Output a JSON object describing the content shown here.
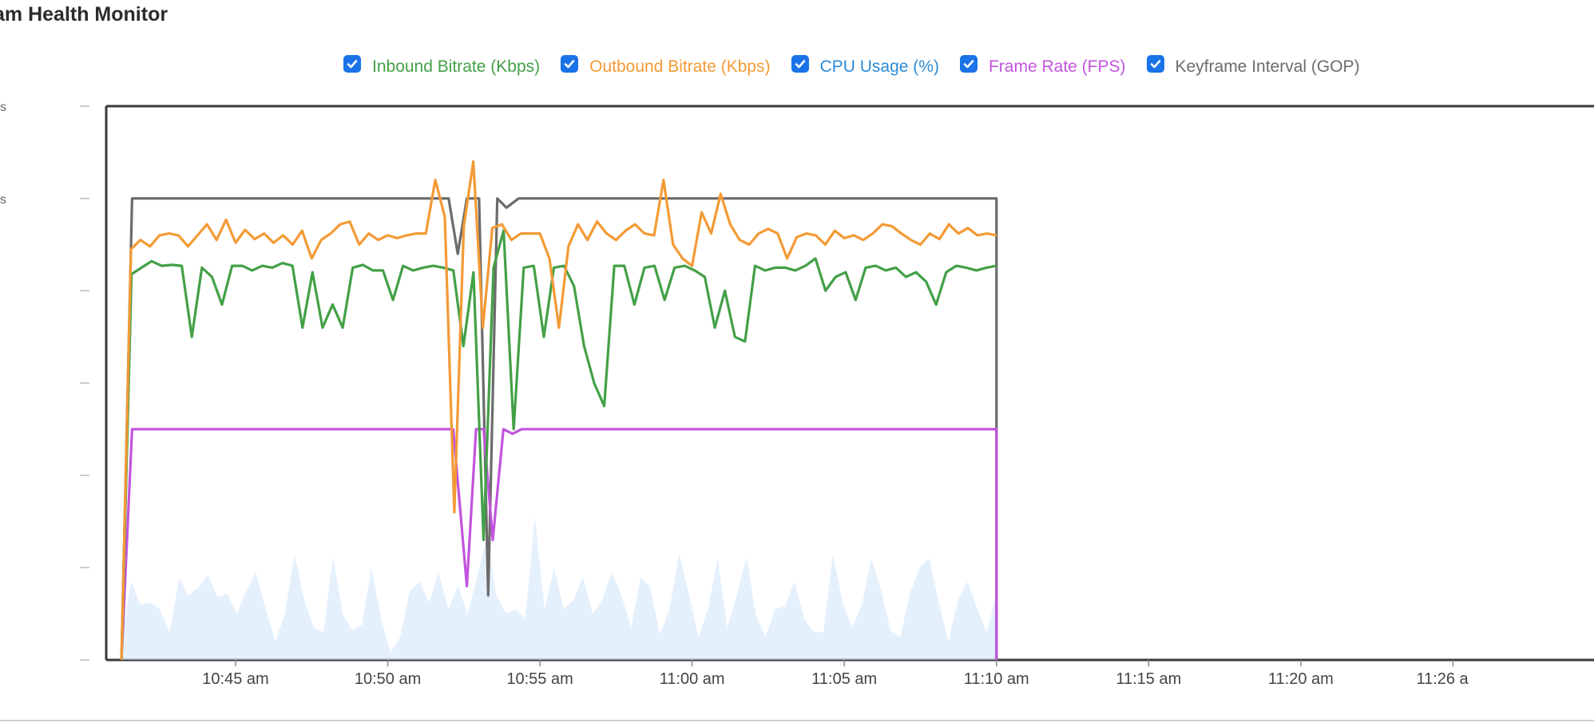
{
  "page": {
    "title": "am Health Monitor"
  },
  "legend": {
    "items": [
      {
        "label": "Inbound Bitrate (Kbps)",
        "color": "#43a047",
        "checked": true
      },
      {
        "label": "Outbound Bitrate (Kbps)",
        "color": "#f39a35",
        "checked": true
      },
      {
        "label": "CPU Usage (%)",
        "color": "#2d8ad6",
        "checked": true
      },
      {
        "label": "Frame Rate (FPS)",
        "color": "#c154dd",
        "checked": true
      },
      {
        "label": "Keyframe Interval (GOP)",
        "color": "#6b6b6b",
        "checked": true
      }
    ]
  },
  "y_axis": {
    "visible_labels": [
      "s",
      "s"
    ]
  },
  "chart_data": {
    "type": "line",
    "x_ticks": [
      "10:45 am",
      "10:50 am",
      "10:55 am",
      "11:00 am",
      "11:05 am",
      "11:10 am",
      "11:15 am",
      "11:20 am",
      "11:26 a"
    ],
    "x_tick_minutes": [
      5,
      10,
      15,
      20,
      25,
      30,
      35,
      40,
      45
    ],
    "x_range": [
      0.75,
      50
    ],
    "y_range": [
      0,
      6
    ],
    "grid": false,
    "legend_placement": "top",
    "series": [
      {
        "name": "Keyframe Interval (GOP)",
        "color": "#6b6b6b",
        "style": "line",
        "points": [
          [
            1.25,
            0
          ],
          [
            1.6,
            5
          ],
          [
            12.0,
            5
          ],
          [
            12.3,
            4.4
          ],
          [
            12.6,
            5
          ],
          [
            13.0,
            5
          ],
          [
            13.3,
            0.7
          ],
          [
            13.6,
            5
          ],
          [
            13.9,
            4.9
          ],
          [
            14.3,
            5
          ],
          [
            30.0,
            5
          ],
          [
            30.0,
            0
          ]
        ]
      },
      {
        "name": "Outbound Bitrate (Kbps)",
        "color": "#f39a35",
        "style": "line",
        "values": [
          0,
          4.45,
          4.55,
          4.48,
          4.6,
          4.62,
          4.6,
          4.48,
          4.6,
          4.72,
          4.55,
          4.77,
          4.52,
          4.66,
          4.56,
          4.62,
          4.52,
          4.6,
          4.5,
          4.65,
          4.35,
          4.55,
          4.62,
          4.72,
          4.75,
          4.5,
          4.62,
          4.55,
          4.6,
          4.57,
          4.6,
          4.62,
          4.62,
          5.2,
          4.8,
          1.6,
          4.7,
          5.4,
          3.6,
          4.68,
          4.72,
          4.55,
          4.62,
          4.62,
          4.62,
          4.35,
          3.6,
          4.48,
          4.72,
          4.55,
          4.75,
          4.62,
          4.55,
          4.65,
          4.72,
          4.62,
          4.6,
          5.2,
          4.5,
          4.35,
          4.27,
          4.85,
          4.62,
          5.05,
          4.72,
          4.55,
          4.5,
          4.62,
          4.67,
          4.62,
          4.35,
          4.58,
          4.62,
          4.6,
          4.5,
          4.65,
          4.57,
          4.6,
          4.55,
          4.62,
          4.72,
          4.7,
          4.62,
          4.55,
          4.5,
          4.62,
          4.56,
          4.72,
          4.62,
          4.68,
          4.6,
          4.62,
          4.6
        ],
        "x_start": 1.25,
        "x_end": 30.0
      },
      {
        "name": "Inbound Bitrate (Kbps)",
        "color": "#43a047",
        "style": "line",
        "values": [
          0,
          4.18,
          4.25,
          4.32,
          4.27,
          4.28,
          4.27,
          3.5,
          4.25,
          4.15,
          3.85,
          4.27,
          4.27,
          4.22,
          4.27,
          4.25,
          4.3,
          4.27,
          3.6,
          4.2,
          3.6,
          3.85,
          3.6,
          4.25,
          4.28,
          4.22,
          4.22,
          3.9,
          4.27,
          4.22,
          4.25,
          4.27,
          4.25,
          4.22,
          3.4,
          4.2,
          1.3,
          4.25,
          4.65,
          2.5,
          4.25,
          4.27,
          3.5,
          4.25,
          4.27,
          4.05,
          3.4,
          3.0,
          2.75,
          4.27,
          4.27,
          3.85,
          4.25,
          4.27,
          3.9,
          4.25,
          4.27,
          4.22,
          4.15,
          3.6,
          4.0,
          3.5,
          3.45,
          4.27,
          4.22,
          4.25,
          4.25,
          4.22,
          4.27,
          4.35,
          4.0,
          4.15,
          4.2,
          3.9,
          4.25,
          4.27,
          4.22,
          4.25,
          4.15,
          4.2,
          4.1,
          3.85,
          4.2,
          4.27,
          4.25,
          4.22,
          4.25,
          4.27
        ],
        "x_start": 1.25,
        "x_end": 30.0
      },
      {
        "name": "Frame Rate (FPS)",
        "color": "#c154dd",
        "style": "line",
        "points": [
          [
            1.25,
            0
          ],
          [
            1.6,
            2.5
          ],
          [
            12.15,
            2.5
          ],
          [
            12.6,
            0.8
          ],
          [
            12.9,
            2.5
          ],
          [
            13.15,
            2.5
          ],
          [
            13.45,
            1.3
          ],
          [
            13.8,
            2.5
          ],
          [
            14.1,
            2.45
          ],
          [
            14.4,
            2.5
          ],
          [
            30.0,
            2.5
          ],
          [
            30.0,
            0
          ]
        ]
      },
      {
        "name": "CPU Usage (%)",
        "color": "#cfe3fb",
        "style": "area",
        "values": [
          0.2,
          0.85,
          0.6,
          0.62,
          0.55,
          0.3,
          0.88,
          0.7,
          0.78,
          0.92,
          0.68,
          0.72,
          0.5,
          0.75,
          0.95,
          0.55,
          0.2,
          0.5,
          1.15,
          0.65,
          0.35,
          0.3,
          1.12,
          0.5,
          0.32,
          0.38,
          1.0,
          0.45,
          0.08,
          0.25,
          0.75,
          0.85,
          0.62,
          0.95,
          0.55,
          0.8,
          0.5,
          0.9,
          1.35,
          0.7,
          0.5,
          0.55,
          0.45,
          1.55,
          0.55,
          1.0,
          0.55,
          0.65,
          0.9,
          0.5,
          0.65,
          0.95,
          0.7,
          0.35,
          0.9,
          0.78,
          0.28,
          0.55,
          1.15,
          0.72,
          0.25,
          0.55,
          1.1,
          0.35,
          0.7,
          1.12,
          0.48,
          0.25,
          0.55,
          0.58,
          0.85,
          0.45,
          0.3,
          0.3,
          1.15,
          0.62,
          0.35,
          0.6,
          1.1,
          0.75,
          0.32,
          0.25,
          0.72,
          1.0,
          1.1,
          0.62,
          0.2,
          0.65,
          0.85,
          0.55,
          0.3,
          0.72
        ],
        "x_start": 1.25,
        "x_end": 30.0
      }
    ]
  }
}
